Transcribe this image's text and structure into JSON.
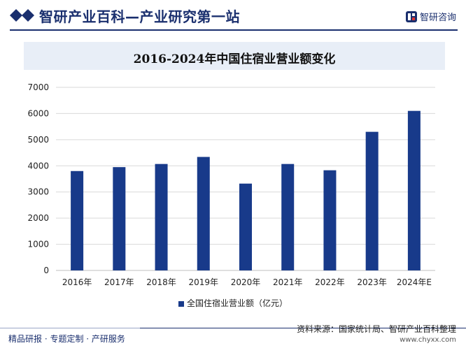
{
  "header": {
    "site_title": "智研产业百科—产业研究第一站",
    "logo_text": "智研咨询"
  },
  "footer": {
    "left_text": "精品研报 · 专题定制 · 产研服务",
    "source_text": "资料来源：国家统计局、智研产业百科整理",
    "url_text": "www.chyxx.com"
  },
  "colors": {
    "brand": "#1a2f6e",
    "bar": "#183a8a",
    "title_bg": "#e8eef7"
  },
  "chart_data": {
    "type": "bar",
    "title": "2016-2024年中国住宿业营业额变化",
    "categories": [
      "2016年",
      "2017年",
      "2018年",
      "2019年",
      "2020年",
      "2021年",
      "2022年",
      "2023年",
      "2024年E"
    ],
    "series": [
      {
        "name": "全国住宿业营业额（亿元）",
        "values": [
          3800,
          3950,
          4070,
          4340,
          3320,
          4070,
          3830,
          5300,
          6100
        ]
      }
    ],
    "ylim": [
      0,
      7000
    ],
    "yticks": [
      0,
      1000,
      2000,
      3000,
      4000,
      5000,
      6000,
      7000
    ],
    "grid": true,
    "legend": "bottom"
  }
}
